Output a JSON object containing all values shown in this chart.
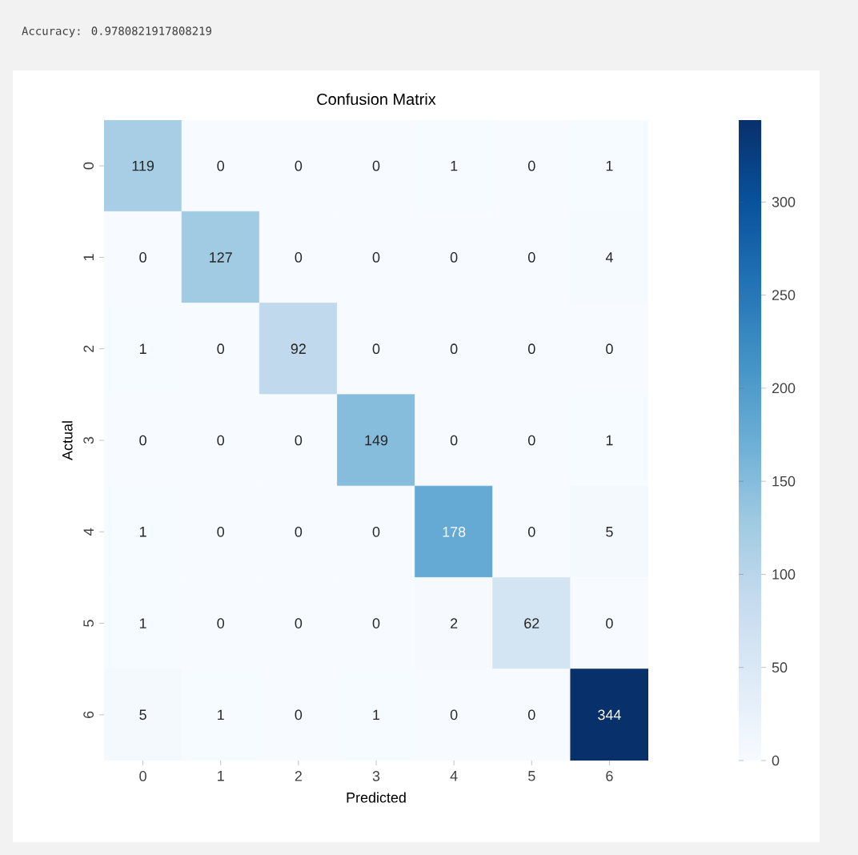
{
  "chart_data": {
    "type": "heatmap",
    "title": "Confusion Matrix",
    "xlabel": "Predicted",
    "ylabel": "Actual",
    "annotations": [
      "Accuracy: 0.9780821917808219"
    ],
    "categories": [
      "0",
      "1",
      "2",
      "3",
      "4",
      "5",
      "6"
    ],
    "y_categories": [
      "0",
      "1",
      "2",
      "3",
      "4",
      "5",
      "6"
    ],
    "cells": [
      [
        119,
        0,
        0,
        0,
        1,
        0,
        1
      ],
      [
        0,
        127,
        0,
        0,
        0,
        0,
        4
      ],
      [
        1,
        0,
        92,
        0,
        0,
        0,
        0
      ],
      [
        0,
        0,
        0,
        149,
        0,
        0,
        1
      ],
      [
        1,
        0,
        0,
        0,
        178,
        0,
        5
      ],
      [
        1,
        0,
        0,
        0,
        2,
        62,
        0
      ],
      [
        5,
        1,
        0,
        1,
        0,
        0,
        344
      ]
    ],
    "data_labels": true,
    "clim": [
      0,
      344
    ],
    "cticks": [
      0,
      50,
      100,
      150,
      200,
      250,
      300
    ]
  }
}
